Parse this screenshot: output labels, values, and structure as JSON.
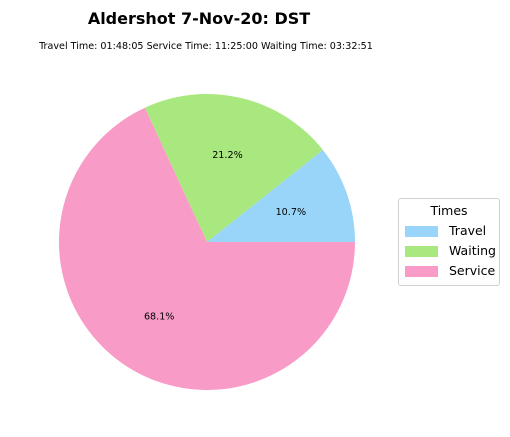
{
  "chart_data": {
    "type": "pie",
    "title": "Aldershot 7-Nov-20: DST",
    "subtitle": "Travel Time: 01:48:05  Service Time: 11:25:00  Waiting Time: 03:32:51",
    "labels": [
      "Travel",
      "Waiting",
      "Service"
    ],
    "values": [
      10.7,
      21.2,
      68.1
    ],
    "value_labels": [
      "10.7%",
      "21.2%",
      "68.1%"
    ],
    "colors": [
      "#99d4f9",
      "#a8e87e",
      "#f89bc7"
    ],
    "start_angle": 0,
    "direction": "counterclockwise",
    "legend": {
      "title": "Times",
      "placement": "right",
      "entries": [
        "Travel",
        "Waiting",
        "Service"
      ]
    }
  }
}
